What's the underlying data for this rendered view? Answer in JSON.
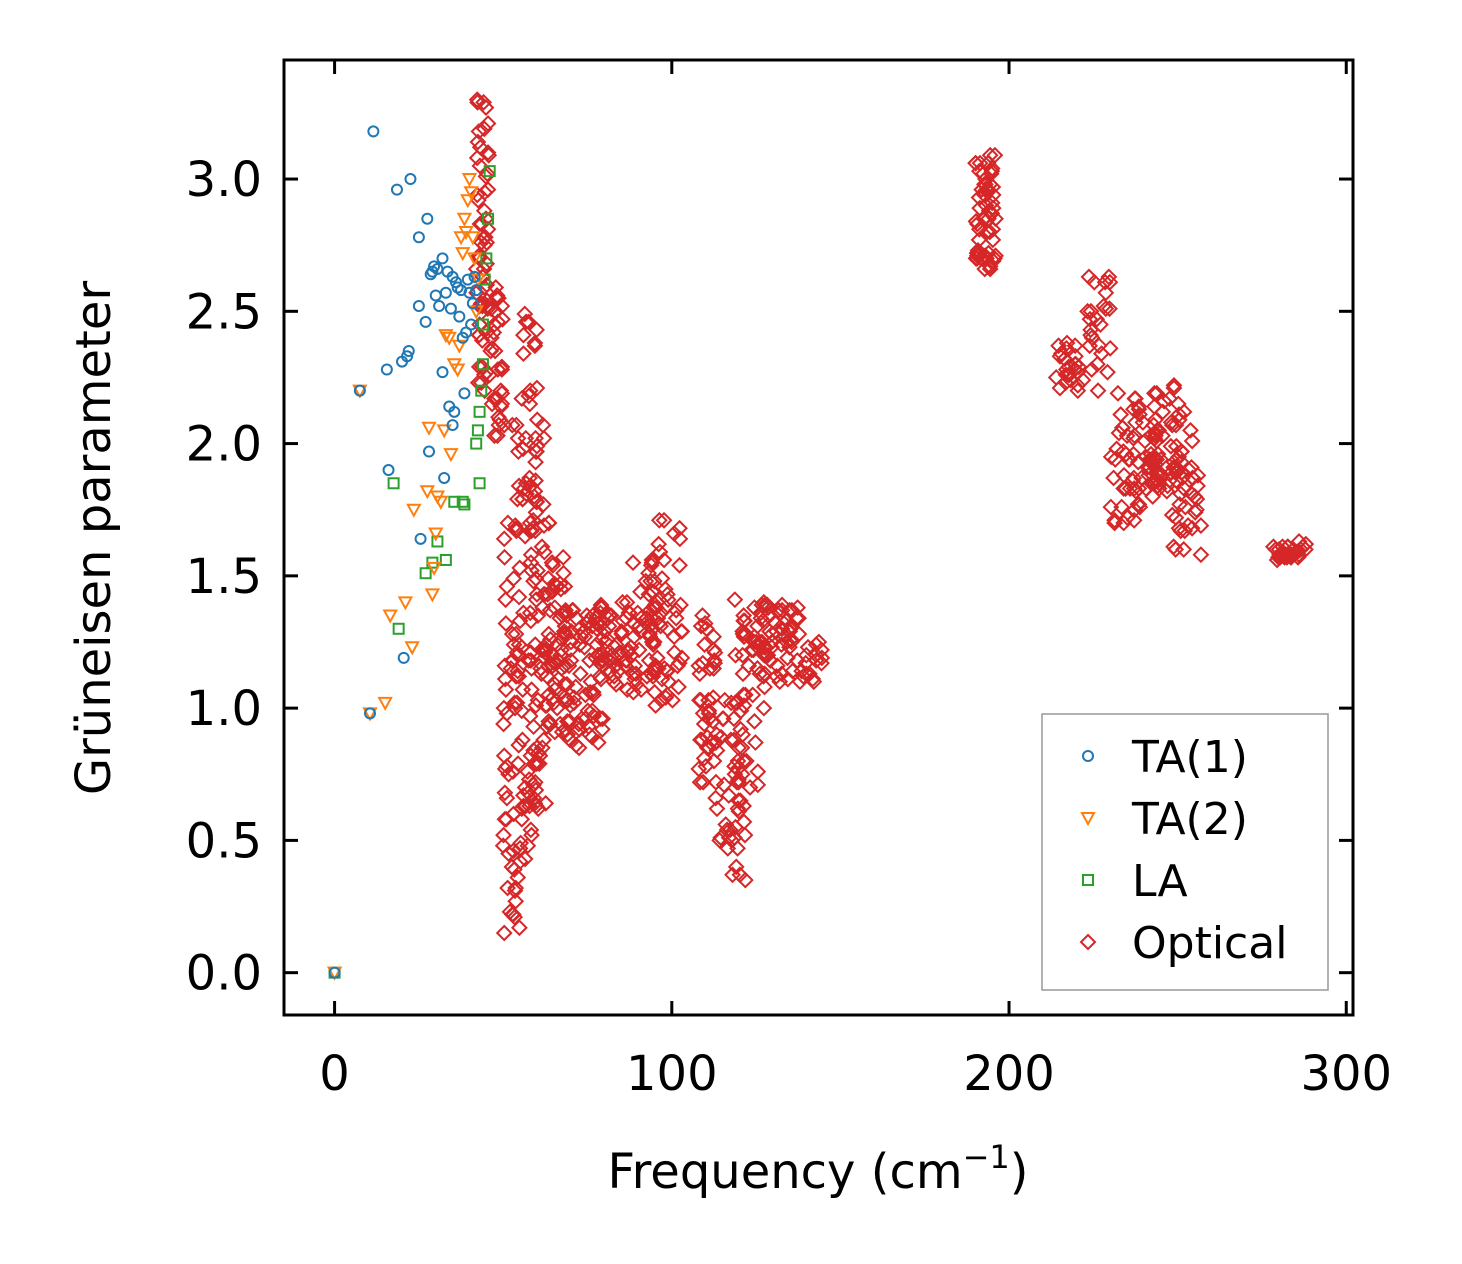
{
  "chart_data": {
    "type": "scatter",
    "title": "",
    "xlabel": "Frequency (cm",
    "xlabel_sup": "−1",
    "xlabel_close": ")",
    "ylabel": "Grüneisen parameter",
    "xlim": [
      -15,
      302
    ],
    "ylim": [
      -0.16,
      3.45
    ],
    "xticks": [
      0,
      100,
      200,
      300
    ],
    "xtick_labels": [
      "0",
      "100",
      "200",
      "300"
    ],
    "yticks": [
      0.0,
      0.5,
      1.0,
      1.5,
      2.0,
      2.5,
      3.0
    ],
    "ytick_labels": [
      "0.0",
      "0.5",
      "1.0",
      "1.5",
      "2.0",
      "2.5",
      "3.0"
    ],
    "grid": false,
    "legend": {
      "position": "lower-right"
    },
    "series": [
      {
        "name": "TA(1)",
        "marker": "circle",
        "color": "#1f77b4",
        "x": [
          0,
          7.5,
          10.5,
          11.5,
          15.5,
          16,
          18.5,
          20,
          20.5,
          21.5,
          22,
          22.5,
          25,
          25,
          25.5,
          27,
          27.5,
          28,
          28.5,
          29,
          29.5,
          30,
          30.5,
          31,
          32,
          32,
          32.5,
          33,
          33.5,
          34,
          34.5,
          35,
          35,
          35.5,
          36,
          36.5,
          37,
          37.5,
          38,
          38.5,
          39,
          39.5,
          40,
          40.5,
          41,
          41.5,
          42
        ],
        "y": [
          0.0,
          2.2,
          0.98,
          3.18,
          2.28,
          1.9,
          2.96,
          2.31,
          1.19,
          2.33,
          2.35,
          3.0,
          2.78,
          2.52,
          1.64,
          2.46,
          2.85,
          1.97,
          2.64,
          2.65,
          2.67,
          2.56,
          2.66,
          2.52,
          2.7,
          2.27,
          1.87,
          2.57,
          2.65,
          2.14,
          2.51,
          2.63,
          2.07,
          2.12,
          2.61,
          2.59,
          2.48,
          2.58,
          2.4,
          2.19,
          2.42,
          2.62,
          2.57,
          2.45,
          2.53,
          2.63,
          2.58
        ]
      },
      {
        "name": "TA(2)",
        "marker": "triangle-down",
        "color": "#ff7f0e",
        "x": [
          0,
          7.5,
          10.5,
          15,
          16.5,
          21,
          23,
          23.5,
          27.5,
          28,
          29,
          29.5,
          30,
          30.5,
          31.5,
          32.5,
          33,
          34,
          34.5,
          35.5,
          36.5,
          37,
          37.5,
          38,
          38.5,
          39,
          39.5,
          40,
          40.5,
          41,
          41.5,
          42,
          42.5
        ],
        "y": [
          0.0,
          2.2,
          0.98,
          1.02,
          1.35,
          1.4,
          1.23,
          1.75,
          1.82,
          2.06,
          1.43,
          1.53,
          1.66,
          1.8,
          1.78,
          2.05,
          2.41,
          2.4,
          1.96,
          2.3,
          2.28,
          2.37,
          2.78,
          2.72,
          2.85,
          2.8,
          2.92,
          3.0,
          2.95,
          2.78,
          2.7,
          2.5,
          2.62
        ]
      },
      {
        "name": "LA",
        "marker": "square",
        "color": "#2ca02c",
        "x": [
          0,
          17.5,
          19,
          27,
          29,
          30.5,
          33,
          35.5,
          38,
          38.5,
          42,
          42.5,
          43,
          43,
          43.5,
          44,
          44,
          44.5,
          45,
          45.5,
          46
        ],
        "y": [
          0.0,
          1.85,
          1.3,
          1.51,
          1.55,
          1.63,
          1.56,
          1.78,
          1.78,
          1.77,
          2.0,
          2.05,
          1.85,
          2.12,
          2.2,
          2.3,
          2.45,
          2.62,
          2.7,
          2.85,
          3.03
        ]
      },
      {
        "name": "Optical",
        "marker": "diamond",
        "color": "#d62728",
        "x": [],
        "y": []
      }
    ]
  }
}
